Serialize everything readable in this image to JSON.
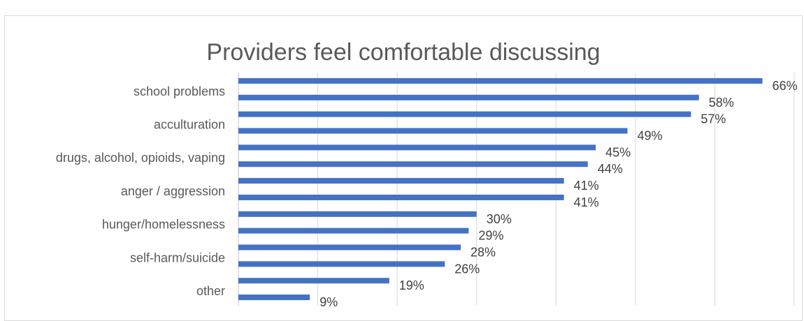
{
  "caption": "",
  "chart_data": {
    "type": "bar",
    "orientation": "horizontal",
    "title": "Providers feel comfortable discussing",
    "categories": [
      "",
      "school problems",
      "",
      "acculturation",
      "",
      "drugs, alcohol, opioids, vaping",
      "",
      "anger / aggression",
      "",
      "hunger/homelessness",
      "",
      "self-harm/suicide",
      "",
      "other"
    ],
    "values": [
      66,
      58,
      57,
      49,
      45,
      44,
      41,
      41,
      30,
      29,
      28,
      26,
      19,
      9
    ],
    "labels": [
      "66%",
      "58%",
      "57%",
      "49%",
      "45%",
      "44%",
      "41%",
      "41%",
      "30%",
      "29%",
      "28%",
      "26%",
      "19%",
      "9%"
    ],
    "xlim": [
      0,
      70
    ],
    "grid": "vertical",
    "legend": "none",
    "bar_color": "#4472c4"
  }
}
